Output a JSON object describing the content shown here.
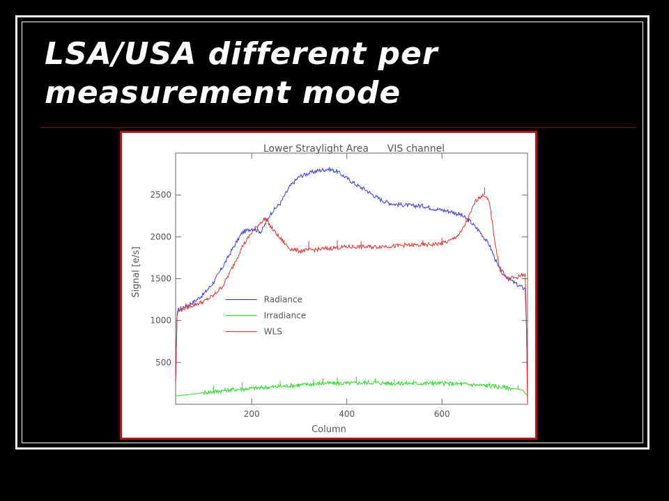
{
  "slide": {
    "title": "LSA/USA different per measurement mode"
  },
  "chart_data": {
    "type": "line",
    "title": "Lower Straylight Area      VIS channel",
    "xlabel": "Column",
    "ylabel": "Signal [e/s]",
    "xlim": [
      40,
      780
    ],
    "ylim": [
      0,
      3000
    ],
    "xticks": [
      200,
      400,
      600
    ],
    "yticks": [
      500,
      1000,
      1500,
      2000,
      2500
    ],
    "legend_position": "center-left",
    "series": [
      {
        "name": "Radiance",
        "color": "#3a3ad8",
        "x": [
          40,
          43,
          45,
          60,
          80,
          100,
          120,
          140,
          160,
          180,
          200,
          220,
          240,
          260,
          280,
          300,
          320,
          340,
          360,
          380,
          400,
          420,
          440,
          460,
          480,
          500,
          520,
          540,
          560,
          580,
          600,
          620,
          640,
          660,
          680,
          700,
          720,
          740,
          760,
          775,
          778,
          780
        ],
        "y": [
          250,
          1050,
          1120,
          1170,
          1230,
          1320,
          1460,
          1650,
          1860,
          2050,
          2100,
          2060,
          2280,
          2400,
          2600,
          2720,
          2760,
          2790,
          2810,
          2780,
          2700,
          2620,
          2560,
          2480,
          2420,
          2390,
          2380,
          2370,
          2370,
          2340,
          2320,
          2300,
          2260,
          2180,
          2060,
          1900,
          1620,
          1500,
          1420,
          1380,
          900,
          0
        ]
      },
      {
        "name": "Irradiance",
        "color": "#22dd22",
        "x": [
          40,
          60,
          100,
          150,
          200,
          250,
          300,
          350,
          400,
          450,
          500,
          550,
          600,
          650,
          700,
          750,
          770,
          780
        ],
        "y": [
          100,
          110,
          140,
          170,
          190,
          210,
          230,
          250,
          250,
          260,
          250,
          250,
          250,
          240,
          220,
          190,
          170,
          100
        ],
        "spikes": [
          [
            120,
            220
          ],
          [
            180,
            260
          ],
          [
            260,
            280
          ],
          [
            330,
            300
          ],
          [
            350,
            310
          ],
          [
            380,
            320
          ],
          [
            420,
            330
          ],
          [
            460,
            310
          ],
          [
            500,
            300
          ],
          [
            540,
            290
          ],
          [
            580,
            280
          ],
          [
            640,
            270
          ],
          [
            700,
            260
          ],
          [
            760,
            230
          ]
        ]
      },
      {
        "name": "WLS",
        "color": "#e03030",
        "x": [
          40,
          43,
          45,
          60,
          80,
          100,
          120,
          140,
          160,
          180,
          200,
          220,
          230,
          240,
          260,
          280,
          300,
          320,
          340,
          360,
          380,
          400,
          420,
          440,
          460,
          480,
          500,
          520,
          540,
          560,
          580,
          600,
          620,
          640,
          660,
          670,
          680,
          690,
          700,
          710,
          720,
          730,
          740,
          760,
          775,
          778,
          780
        ],
        "y": [
          250,
          1050,
          1110,
          1150,
          1190,
          1230,
          1300,
          1420,
          1640,
          1880,
          2050,
          2180,
          2220,
          2120,
          1980,
          1860,
          1830,
          1840,
          1850,
          1860,
          1870,
          1880,
          1880,
          1880,
          1880,
          1890,
          1890,
          1900,
          1900,
          1900,
          1910,
          1920,
          1960,
          2050,
          2280,
          2420,
          2480,
          2500,
          2400,
          2000,
          1650,
          1530,
          1500,
          1520,
          1560,
          900,
          0
        ],
        "spikes": [
          [
            320,
            1950
          ],
          [
            380,
            1960
          ],
          [
            430,
            1950
          ],
          [
            560,
            1960
          ],
          [
            600,
            1990
          ],
          [
            690,
            2590
          ]
        ]
      }
    ]
  }
}
